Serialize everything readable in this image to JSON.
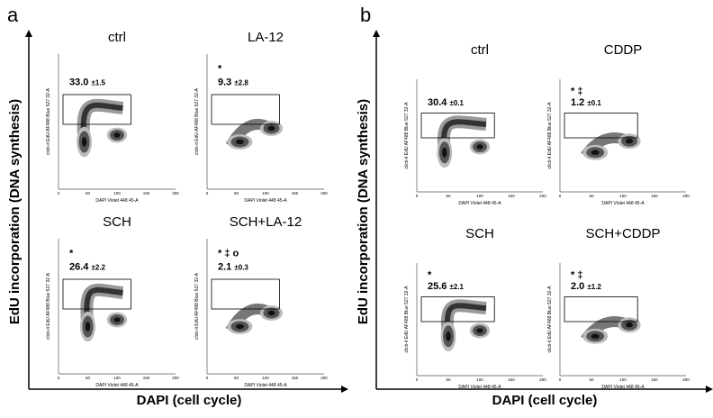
{
  "panels": [
    {
      "letter": "a",
      "y_label": "EdU incorporation (DNA synthesis)",
      "x_label": "DAPI (cell cycle)",
      "plots": [
        {
          "title": "ctrl",
          "value": "33.0",
          "sd": "±1.5"
        },
        {
          "title": "LA-12",
          "marker": "*",
          "value": "9.3",
          "sd": "±2.8"
        },
        {
          "title": "SCH",
          "marker": "*",
          "value": "26.4",
          "sd": "±2.2"
        },
        {
          "title": "SCH+LA-12",
          "marker": "* ‡ o",
          "value": "2.1",
          "sd": "±0.3"
        }
      ]
    },
    {
      "letter": "b",
      "y_label": "EdU incorporation (DNA synthesis)",
      "x_label": "DAPI (cell cycle)",
      "plots": [
        {
          "title": "ctrl",
          "value": "30.4",
          "sd": "±0.1"
        },
        {
          "title": "CDDP",
          "marker": "* ‡",
          "value": "1.2",
          "sd": "±0.1"
        },
        {
          "title": "SCH",
          "marker": "*",
          "value": "25.6",
          "sd": "±2.1"
        },
        {
          "title": "SCH+CDDP",
          "marker": "* ‡",
          "value": "2.0",
          "sd": "±1.2"
        }
      ]
    }
  ],
  "plot_y_axis": "click-it EdU AF488 Blue 527 32-A",
  "plot_x_axis": "DAPI Violet 448 45-A",
  "plot_x_ticks": [
    "0",
    "50",
    "100",
    "150",
    "200"
  ]
}
